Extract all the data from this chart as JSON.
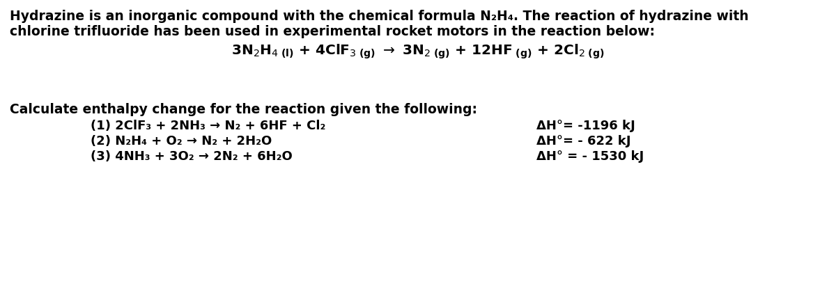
{
  "bg_color": "#ffffff",
  "figsize": [
    12.0,
    4.24
  ],
  "dpi": 100,
  "intro_line1": "Hydrazine is an inorganic compound with the chemical formula N₂H₄. The reaction of hydrazine with",
  "intro_line2": "chlorine trifluoride has been used in experimental rocket motors in the reaction below:",
  "calculate_line": "Calculate enthalpy change for the reaction given the following:",
  "reactions": [
    {
      "label": "(1) 2ClF₃ + 2NH₃ → N₂ + 6HF + Cl₂",
      "dH": "ΔH°= -1196 kJ"
    },
    {
      "label": "(2) N₂H₄ + O₂ → N₂ + 2H₂O",
      "dH": "ΔH°= - 622 kJ"
    },
    {
      "label": "(3) 4NH₃ + 3O₂ → 2N₂ + 6H₂O",
      "dH": "ΔH° = - 1530 kJ"
    }
  ],
  "font_family": "DejaVu Sans",
  "intro_fontsize": 13.5,
  "calc_fontsize": 13.5,
  "reaction_fontsize": 13.0,
  "dH_fontsize": 13.0,
  "main_rxn_fontsize": 14.5
}
